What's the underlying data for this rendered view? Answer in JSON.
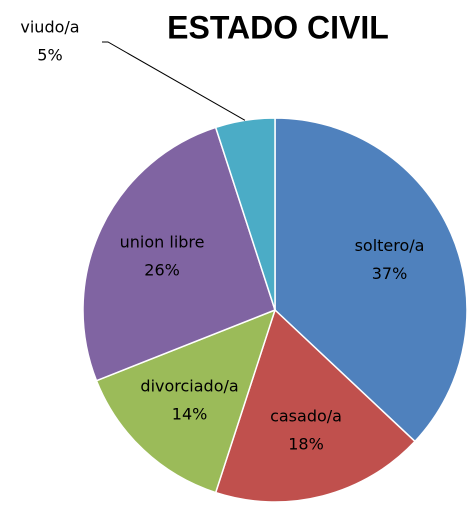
{
  "chart_data": {
    "type": "pie",
    "title": "ESTADO CIVIL",
    "categories": [
      "soltero/a",
      "casado/a",
      "divorciado/a",
      "union libre",
      "viudo/a"
    ],
    "values": [
      37,
      18,
      14,
      26,
      5
    ],
    "value_labels": [
      "37%",
      "18%",
      "14%",
      "26%",
      "5%"
    ],
    "colors": [
      "#4f81bd",
      "#c0504d",
      "#9bbb59",
      "#8064a2",
      "#4bacc6"
    ]
  }
}
